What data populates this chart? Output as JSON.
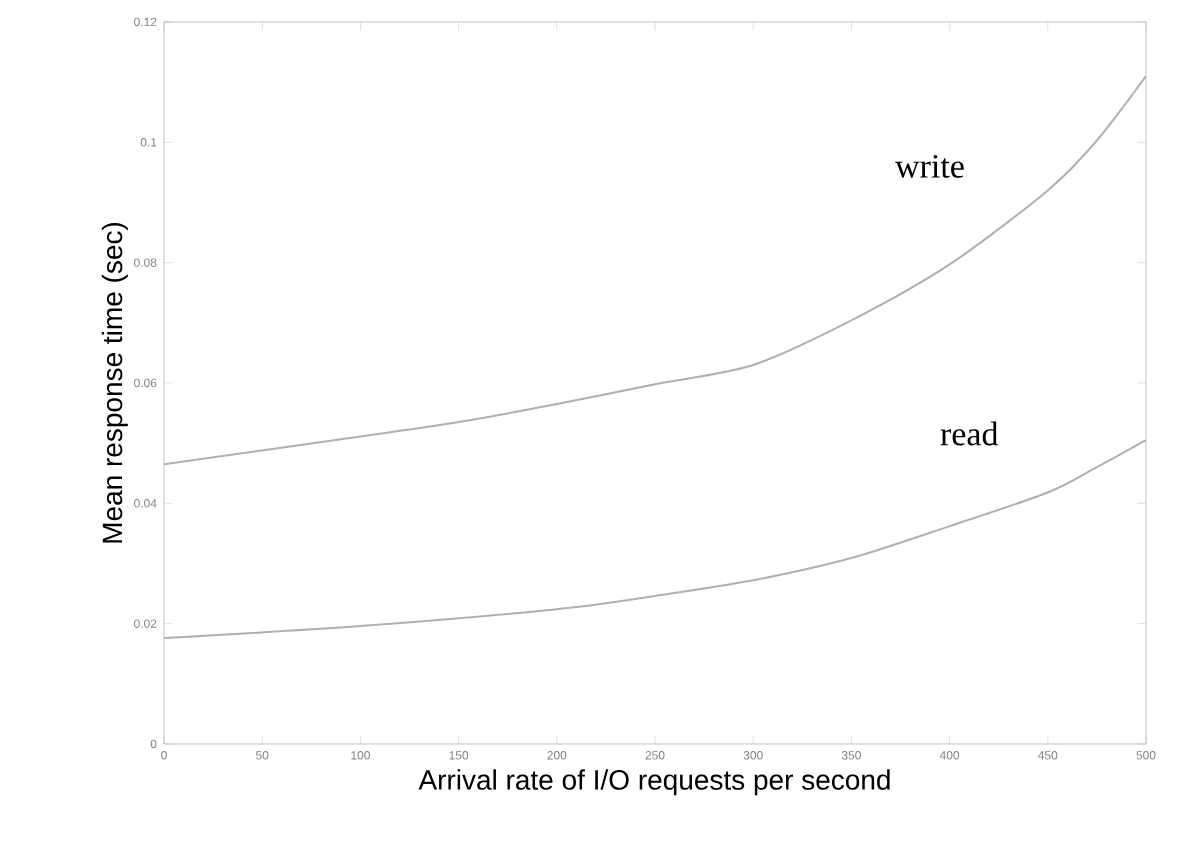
{
  "chart_data": {
    "type": "line",
    "xlabel": "Arrival rate of I/O requests per second",
    "ylabel": "Mean response time (sec)",
    "xlim": [
      0,
      500
    ],
    "xticks": [
      0,
      50,
      100,
      150,
      200,
      250,
      300,
      350,
      400,
      450,
      500
    ],
    "ylim": [
      0,
      0.12
    ],
    "yticks": [
      0,
      0.02,
      0.04,
      0.06,
      0.08,
      0.1,
      0.12
    ],
    "grid": false,
    "legend": false,
    "annotations": [
      "write",
      "read"
    ],
    "series": [
      {
        "color": "#b0b0b0",
        "x": [
          0,
          100,
          150,
          200,
          250,
          300,
          350,
          400,
          450,
          475,
          500
        ],
        "values": [
          0.0465,
          0.0511,
          0.0535,
          0.0565,
          0.0598,
          0.063,
          0.0704,
          0.0797,
          0.092,
          0.1003,
          0.111
        ]
      },
      {
        "color": "#b0b0b0",
        "x": [
          0,
          100,
          200,
          250,
          300,
          350,
          400,
          450,
          475,
          500
        ],
        "values": [
          0.0176,
          0.0196,
          0.0224,
          0.0246,
          0.0272,
          0.0309,
          0.0362,
          0.0418,
          0.046,
          0.0505
        ]
      }
    ]
  }
}
